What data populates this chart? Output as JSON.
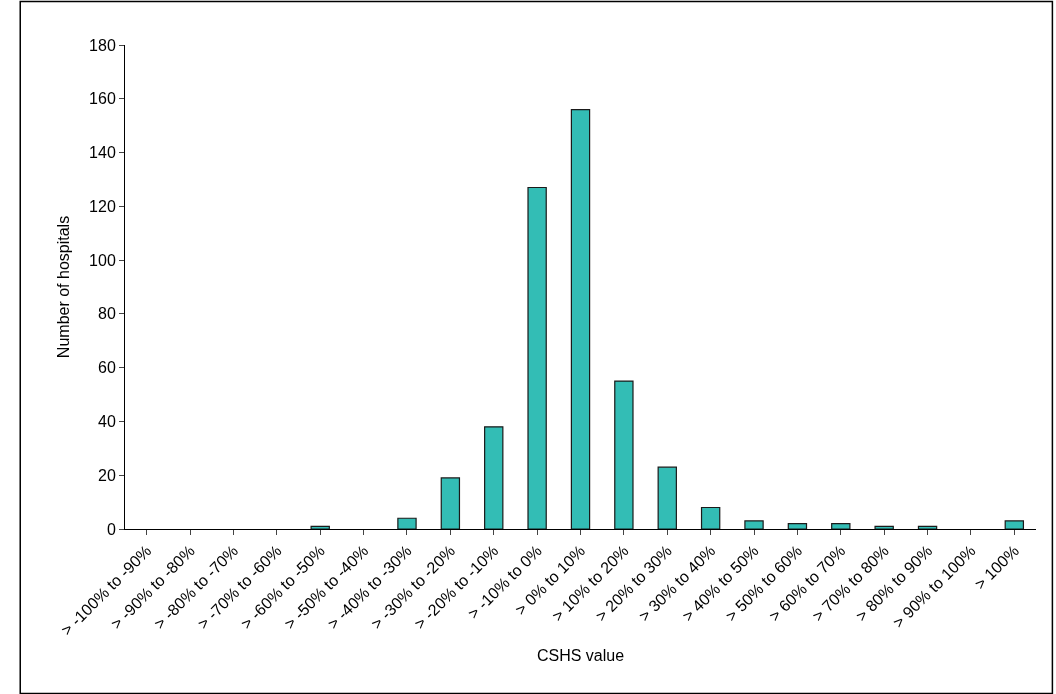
{
  "chart_data": {
    "type": "bar",
    "xlabel": "CSHS value",
    "ylabel": "Number of hospitals",
    "categories": [
      "> -100% to -90%",
      "> -90% to -80%",
      "> -80% to -70%",
      "> -70% to -60%",
      "> -60% to -50%",
      "> -50% to -40%",
      "> -40% to -30%",
      "> -30% to -20%",
      "> -20% to -10%",
      "> -10% to 0%",
      "> 0% to 10%",
      "> 10% to 20%",
      "> 20% to 30%",
      "> 30% to 40%",
      "> 40% to 50%",
      "> 50% to 60%",
      "> 60% to 70%",
      "> 70% to 80%",
      "> 80% to 90%",
      "> 90% to 100%",
      "> 100%"
    ],
    "values": [
      0,
      0,
      0,
      0,
      1,
      0,
      4,
      19,
      38,
      127,
      156,
      55,
      23,
      8,
      3,
      2,
      2,
      1,
      1,
      0,
      3
    ],
    "color": "#33bdb5",
    "ylim": [
      0,
      180
    ],
    "yticks": [
      0,
      20,
      40,
      60,
      80,
      100,
      120,
      140,
      160,
      180
    ]
  }
}
